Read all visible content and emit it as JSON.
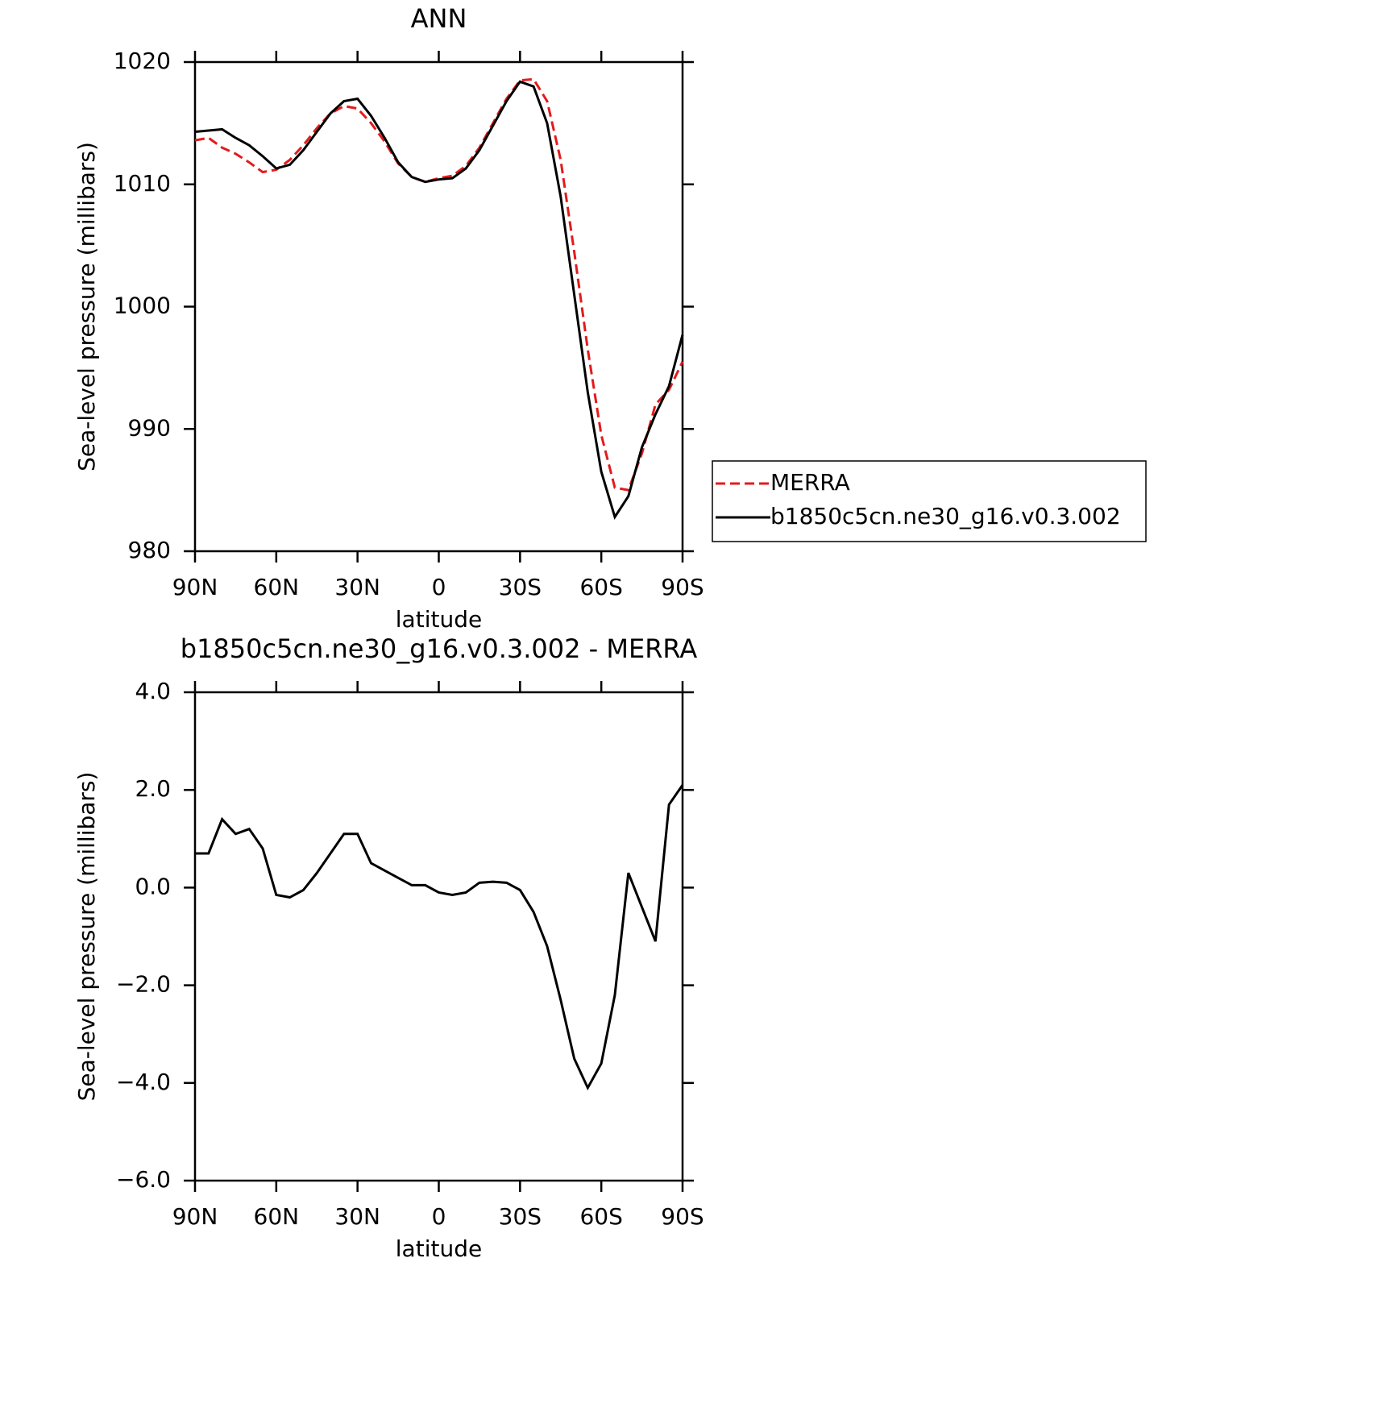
{
  "chart_data": [
    {
      "type": "line",
      "title": "ANN",
      "xlabel": "latitude",
      "ylabel": "Sea-level pressure (millibars)",
      "x": [
        90,
        85,
        80,
        75,
        70,
        65,
        60,
        55,
        50,
        45,
        40,
        35,
        30,
        25,
        20,
        15,
        10,
        5,
        0,
        -5,
        -10,
        -15,
        -20,
        -25,
        -30,
        -35,
        -40,
        -45,
        -50,
        -55,
        -60,
        -65,
        -70,
        -75,
        -80,
        -85,
        -90
      ],
      "series": [
        {
          "name": "MERRA",
          "color": "#e41a1c",
          "dash": true,
          "values": [
            1013.6,
            1013.8,
            1013.0,
            1012.5,
            1011.8,
            1011.0,
            1011.2,
            1012.0,
            1013.2,
            1014.6,
            1015.8,
            1016.4,
            1016.2,
            1015.0,
            1013.5,
            1011.7,
            1010.6,
            1010.2,
            1010.5,
            1010.7,
            1011.5,
            1013.0,
            1015.0,
            1017.0,
            1018.5,
            1018.6,
            1016.8,
            1012.0,
            1004.5,
            996.5,
            989.5,
            985.2,
            985.0,
            988.0,
            992.0,
            993.2,
            995.5
          ]
        },
        {
          "name": "b1850c5cn.ne30_g16.v0.3.002",
          "color": "#000000",
          "dash": false,
          "values": [
            1014.3,
            1014.4,
            1014.5,
            1013.8,
            1013.2,
            1012.3,
            1011.3,
            1011.6,
            1012.8,
            1014.3,
            1015.8,
            1016.8,
            1017.0,
            1015.6,
            1013.8,
            1011.8,
            1010.6,
            1010.2,
            1010.4,
            1010.5,
            1011.3,
            1012.8,
            1014.8,
            1016.8,
            1018.4,
            1018.0,
            1015.0,
            1009.0,
            1001.0,
            993.0,
            986.5,
            982.8,
            984.5,
            988.5,
            991.2,
            993.5,
            997.7
          ]
        }
      ],
      "xlim": [
        90,
        -90
      ],
      "xticks": [
        {
          "value": 90,
          "label": "90N"
        },
        {
          "value": 60,
          "label": "60N"
        },
        {
          "value": 30,
          "label": "30N"
        },
        0,
        {
          "value": -30,
          "label": "30S"
        },
        {
          "value": -60,
          "label": "60S"
        },
        {
          "value": -90,
          "label": "90S"
        }
      ],
      "ylim": [
        980,
        1020
      ],
      "yticks": [
        980,
        990,
        1000,
        1010,
        1020
      ],
      "legend": "right"
    },
    {
      "type": "line",
      "title": "b1850c5cn.ne30_g16.v0.3.002 - MERRA",
      "xlabel": "latitude",
      "ylabel": "Sea-level pressure (millibars)",
      "x": [
        90,
        85,
        80,
        75,
        70,
        65,
        60,
        55,
        50,
        45,
        40,
        35,
        30,
        25,
        20,
        15,
        10,
        5,
        0,
        -5,
        -10,
        -15,
        -20,
        -25,
        -30,
        -35,
        -40,
        -45,
        -50,
        -55,
        -60,
        -65,
        -70,
        -75,
        -80,
        -85,
        -90
      ],
      "series": [
        {
          "color": "#000000",
          "dash": false,
          "values": [
            0.7,
            0.7,
            1.4,
            1.1,
            1.2,
            0.8,
            -0.15,
            -0.2,
            -0.05,
            0.3,
            0.7,
            1.1,
            1.1,
            0.5,
            0.35,
            0.2,
            0.05,
            0.05,
            -0.1,
            -0.15,
            -0.1,
            0.1,
            0.12,
            0.1,
            -0.05,
            -0.5,
            -1.2,
            -2.3,
            -3.5,
            -4.1,
            -3.6,
            -2.2,
            0.3,
            -0.4,
            -1.1,
            1.7,
            2.1
          ]
        }
      ],
      "xlim": [
        90,
        -90
      ],
      "xticks": [
        {
          "value": 90,
          "label": "90N"
        },
        {
          "value": 60,
          "label": "60N"
        },
        {
          "value": 30,
          "label": "30N"
        },
        0,
        {
          "value": -30,
          "label": "30S"
        },
        {
          "value": -60,
          "label": "60S"
        },
        {
          "value": -90,
          "label": "90S"
        }
      ],
      "ylim": [
        -6,
        4
      ],
      "yticks": [
        {
          "value": -6,
          "label": "−6.0"
        },
        {
          "value": -4,
          "label": "−4.0"
        },
        {
          "value": -2,
          "label": "−2.0"
        },
        {
          "value": 0,
          "label": "0.0"
        },
        {
          "value": 2,
          "label": "2.0"
        },
        {
          "value": 4,
          "label": "4.0"
        }
      ]
    }
  ]
}
